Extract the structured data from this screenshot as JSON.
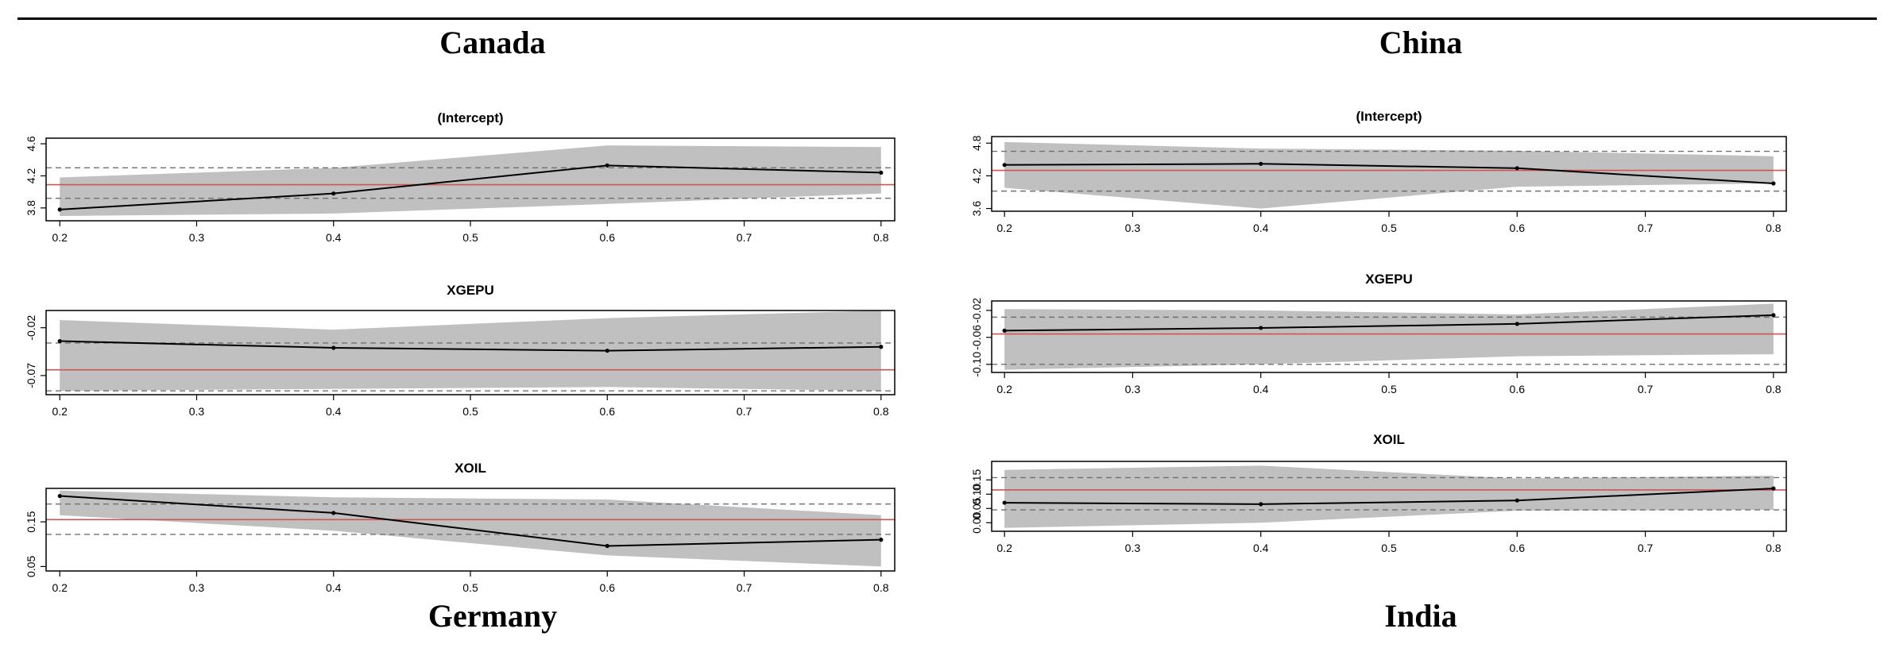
{
  "countries": [
    "Canada",
    "China",
    "Germany",
    "India"
  ],
  "colors": {
    "band": "#c0c0c0",
    "line": "#000000",
    "mean": "#cc5555",
    "dashed": "#707070"
  },
  "chart_data": [
    {
      "type": "line",
      "country": "Canada",
      "title": "(Intercept)",
      "x": [
        0.2,
        0.4,
        0.6,
        0.8
      ],
      "series": [
        {
          "values": [
            3.78,
            3.98,
            4.33,
            4.24
          ]
        }
      ],
      "lower": [
        3.7,
        3.73,
        3.85,
        3.98
      ],
      "upper": [
        4.18,
        4.3,
        4.58,
        4.56
      ],
      "mean": 4.09,
      "dashed": [
        3.92,
        4.3
      ],
      "xlim": [
        0.19,
        0.81
      ],
      "ylim": [
        3.64,
        4.67
      ],
      "xticks": [
        "0.2",
        "0.3",
        "0.4",
        "0.5",
        "0.6",
        "0.7",
        "0.8"
      ],
      "yticks": [
        "3.8",
        "4.2",
        "4.6"
      ],
      "ytick_values": [
        3.8,
        4.2,
        4.6
      ]
    },
    {
      "type": "line",
      "country": "Canada",
      "title": "XGEPU",
      "x": [
        0.2,
        0.4,
        0.6,
        0.8
      ],
      "series": [
        {
          "values": [
            -0.034,
            -0.041,
            -0.044,
            -0.04
          ]
        }
      ],
      "lower": [
        -0.086,
        -0.084,
        -0.082,
        -0.086
      ],
      "upper": [
        -0.012,
        -0.022,
        -0.01,
        -0.002
      ],
      "mean": -0.064,
      "dashed": [
        -0.036,
        -0.086
      ],
      "xlim": [
        0.19,
        0.81
      ],
      "ylim": [
        -0.09,
        -0.002
      ],
      "xticks": [
        "0.2",
        "0.3",
        "0.4",
        "0.5",
        "0.6",
        "0.7",
        "0.8"
      ],
      "yticks": [
        "-0.07",
        "-0.02"
      ],
      "ytick_values": [
        -0.07,
        -0.02
      ]
    },
    {
      "type": "line",
      "country": "Canada",
      "title": "XOIL",
      "x": [
        0.2,
        0.4,
        0.6,
        0.8
      ],
      "series": [
        {
          "values": [
            0.208,
            0.17,
            0.096,
            0.11
          ]
        }
      ],
      "lower": [
        0.165,
        0.13,
        0.075,
        0.05
      ],
      "upper": [
        0.22,
        0.205,
        0.2,
        0.165
      ],
      "mean": 0.155,
      "dashed": [
        0.19,
        0.122
      ],
      "xlim": [
        0.19,
        0.81
      ],
      "ylim": [
        0.04,
        0.225
      ],
      "xticks": [
        "0.2",
        "0.3",
        "0.4",
        "0.5",
        "0.6",
        "0.7",
        "0.8"
      ],
      "yticks": [
        "0.05",
        "0.15"
      ],
      "ytick_values": [
        0.05,
        0.15
      ]
    },
    {
      "type": "line",
      "country": "China",
      "title": "(Intercept)",
      "x": [
        0.2,
        0.4,
        0.6,
        0.8
      ],
      "series": [
        {
          "values": [
            4.4,
            4.42,
            4.34,
            4.06
          ]
        }
      ],
      "lower": [
        3.98,
        3.6,
        4.0,
        4.06
      ],
      "upper": [
        4.82,
        4.7,
        4.66,
        4.56
      ],
      "mean": 4.3,
      "dashed": [
        4.65,
        3.92
      ],
      "xlim": [
        0.19,
        0.81
      ],
      "ylim": [
        3.55,
        4.92
      ],
      "xticks": [
        "0.2",
        "0.3",
        "0.4",
        "0.5",
        "0.6",
        "0.7",
        "0.8"
      ],
      "yticks": [
        "3.6",
        "4.2",
        "4.8"
      ],
      "ytick_values": [
        3.6,
        4.2,
        4.8
      ]
    },
    {
      "type": "line",
      "country": "China",
      "title": "XGEPU",
      "x": [
        0.2,
        0.4,
        0.6,
        0.8
      ],
      "series": [
        {
          "values": [
            -0.05,
            -0.046,
            -0.04,
            -0.027
          ]
        }
      ],
      "lower": [
        -0.108,
        -0.1,
        -0.088,
        -0.085
      ],
      "upper": [
        -0.018,
        -0.02,
        -0.026,
        -0.01
      ],
      "mean": -0.055,
      "dashed": [
        -0.03,
        -0.1
      ],
      "xlim": [
        0.19,
        0.81
      ],
      "ylim": [
        -0.112,
        -0.006
      ],
      "xticks": [
        "0.2",
        "0.3",
        "0.4",
        "0.5",
        "0.6",
        "0.7",
        "0.8"
      ],
      "yticks": [
        "-0.10",
        "-0.06",
        "-0.02"
      ],
      "ytick_values": [
        -0.1,
        -0.06,
        -0.02
      ]
    },
    {
      "type": "line",
      "country": "China",
      "title": "XOIL",
      "x": [
        0.2,
        0.4,
        0.6,
        0.8
      ],
      "series": [
        {
          "values": [
            0.07,
            0.065,
            0.078,
            0.12
          ]
        }
      ],
      "lower": [
        -0.018,
        0.0,
        0.042,
        0.045
      ],
      "upper": [
        0.185,
        0.2,
        0.155,
        0.165
      ],
      "mean": 0.115,
      "dashed": [
        0.158,
        0.045
      ],
      "xlim": [
        0.19,
        0.81
      ],
      "ylim": [
        -0.03,
        0.215
      ],
      "xticks": [
        "0.2",
        "0.3",
        "0.4",
        "0.5",
        "0.6",
        "0.7",
        "0.8"
      ],
      "yticks": [
        "0.00",
        "0.05",
        "0.10",
        "0.15"
      ],
      "ytick_values": [
        0.0,
        0.05,
        0.1,
        0.15
      ]
    }
  ]
}
